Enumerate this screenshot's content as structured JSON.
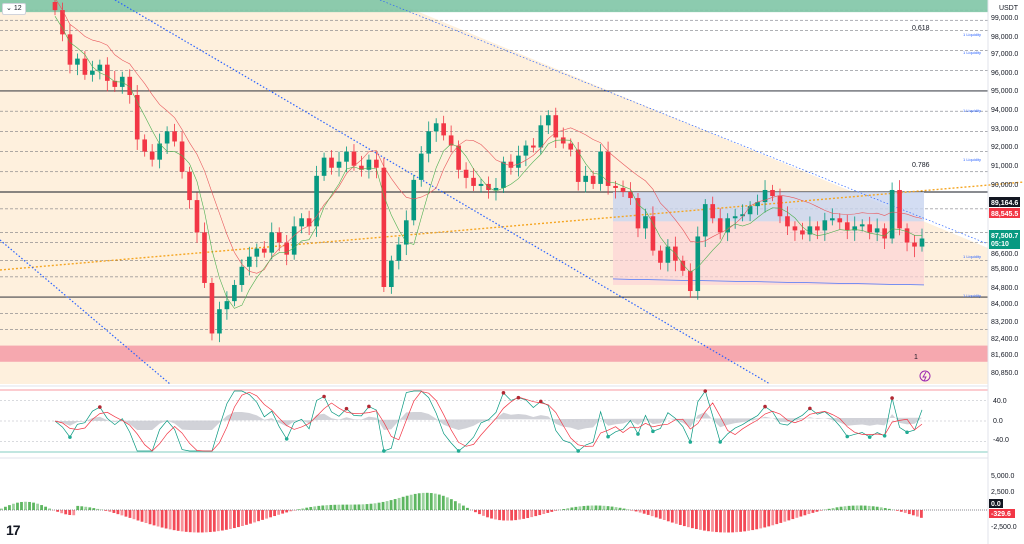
{
  "header": {
    "interval_label": "12",
    "chevron_icon": "chevron-down-icon",
    "currency": "USDT"
  },
  "price_axis": {
    "ticks": [
      "99,000.0",
      "98,000.0",
      "97,000.0",
      "96,000.0",
      "95,000.0",
      "94,000.0",
      "93,000.0",
      "92,000.0",
      "91,000.0",
      "90,000.0",
      "89,164.6",
      "88,545.5",
      "87,500.7",
      "86,600.0",
      "85,800.0",
      "84,800.0",
      "84,000.0",
      "83,200.0",
      "82,400.0",
      "81,600.0",
      "80,850.0"
    ]
  },
  "price_tags": [
    {
      "label": "89,164.6",
      "color": "#131722"
    },
    {
      "label": "88,545.5",
      "color": "#f23645"
    },
    {
      "label": "87,500.7",
      "color": "#089981"
    },
    {
      "label": "05:10",
      "color": "#089981"
    }
  ],
  "fib_labels": {
    "upper": "0.618",
    "lower": "0.786"
  },
  "liquidity_labels": [
    "1 Liquidity",
    "1 Liquidity",
    "1 Liquidity",
    "1 Liquidity",
    "1 Liquidity",
    "1 Liquidity"
  ],
  "marker_label": "1",
  "osc_axis": {
    "ticks": [
      "40.0",
      "0.0",
      "-40.0"
    ]
  },
  "macd_axis": {
    "ticks": [
      "5,000.0",
      "2,500.0",
      "0.0",
      "-2,500.0"
    ],
    "tags": [
      {
        "label": "0.0",
        "color": "#131722"
      },
      {
        "label": "-329.6",
        "color": "#f23645"
      }
    ]
  },
  "logo_text": "17",
  "colors": {
    "up": "#089981",
    "down": "#f23645",
    "zone_green": "#7fc5a6",
    "zone_red": "#f5a0aa",
    "bg_orange": "#fdebd2",
    "box_blue": "#c8d4f0",
    "box_red": "#fcd3d6",
    "trend_blue": "#2962ff",
    "trend_orange": "#f5a623",
    "ma_red": "#e8575c",
    "ma_green": "#4caf50"
  },
  "chart_data": {
    "type": "candlestick",
    "title": "",
    "ylim": [
      80500,
      99500
    ],
    "horizontal_levels": [
      99000,
      98500,
      98000,
      97000,
      96000,
      95000,
      94000,
      93000,
      92000,
      91000,
      90000,
      89164.6,
      88000,
      87500.7,
      86600,
      85800,
      84800,
      84000,
      83200
    ],
    "zones": [
      {
        "name": "supply",
        "from": 98900,
        "to": 99900
      },
      {
        "name": "demand",
        "from": 81600,
        "to": 82400
      }
    ],
    "fib_levels": [
      {
        "label": "0.618",
        "value": 98600
      },
      {
        "label": "0.786",
        "value": 91100
      }
    ],
    "range_box": {
      "top": 90000,
      "mid": 88545.5,
      "bottom": 85400
    },
    "closes": [
      99000,
      97800,
      96300,
      96600,
      95800,
      96000,
      96300,
      95500,
      95200,
      95700,
      94800,
      92600,
      92000,
      91600,
      92400,
      93000,
      92500,
      91000,
      89600,
      88000,
      85500,
      83000,
      84200,
      84600,
      85400,
      86300,
      86800,
      87200,
      87000,
      88000,
      87500,
      86900,
      88300,
      88700,
      88300,
      90800,
      91700,
      91200,
      91500,
      92000,
      91300,
      91100,
      91600,
      91200,
      85300,
      86600,
      87400,
      88600,
      90600,
      91900,
      93000,
      93400,
      92800,
      92300,
      91100,
      90700,
      90300,
      90400,
      90100,
      90200,
      91500,
      91200,
      91800,
      92300,
      92200,
      93300,
      93800,
      92700,
      92400,
      92100,
      90500,
      90800,
      90400,
      92000,
      90300,
      90200,
      90000,
      89700,
      88200,
      88800,
      87100,
      86500,
      87300,
      86600,
      86100,
      85100,
      87800,
      89400,
      88700,
      88000,
      88700,
      88800,
      88900,
      89300,
      89500,
      90100,
      89800,
      88800,
      88300,
      88100,
      87900,
      88300,
      88100,
      88600,
      88700,
      88500,
      88100,
      88300,
      88400,
      88000,
      88200,
      87700,
      90100,
      88200,
      87500,
      87300,
      87700
    ],
    "indicator": {
      "type": "oscillator",
      "ylim": [
        -60,
        60
      ],
      "levels": [
        60,
        40,
        0,
        -40
      ]
    },
    "macd": {
      "type": "histogram",
      "ylim": [
        -4000,
        6000
      ]
    }
  }
}
